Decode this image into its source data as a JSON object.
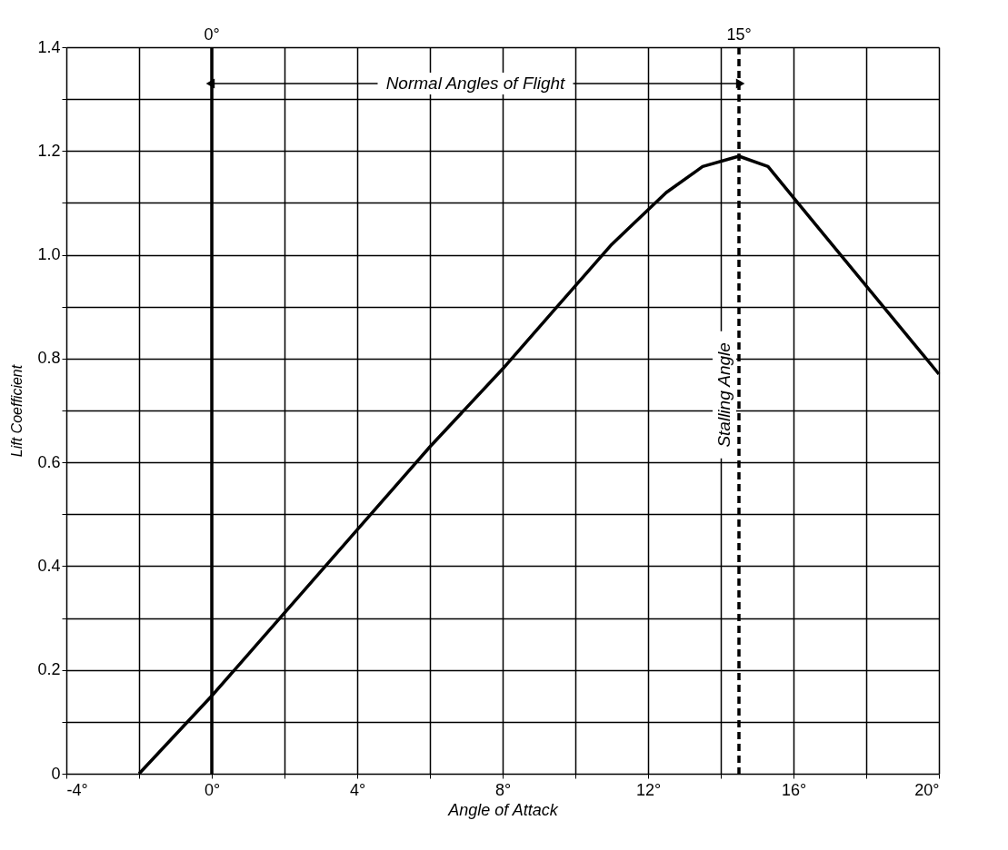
{
  "chart_data": {
    "type": "line",
    "xlabel": "Angle of Attack",
    "ylabel": "Lift Coefficient",
    "x": [
      -2,
      0,
      2,
      4,
      6,
      8,
      9.5,
      11,
      12.5,
      13.5,
      14.5,
      15.3,
      16,
      20
    ],
    "series": [
      {
        "color": "#000000",
        "values": [
          0,
          0.15,
          0.31,
          0.47,
          0.63,
          0.78,
          0.9,
          1.02,
          1.12,
          1.17,
          1.19,
          1.17,
          1.11,
          0.77
        ]
      }
    ],
    "xlim": [
      -4,
      20
    ],
    "xticks": [
      {
        "value": -4,
        "label": "-4°"
      },
      {
        "value": -2,
        "label": null
      },
      {
        "value": 0,
        "label": "0°"
      },
      {
        "value": 2,
        "label": null
      },
      {
        "value": 4,
        "label": "4°"
      },
      {
        "value": 6,
        "label": null
      },
      {
        "value": 8,
        "label": "8°"
      },
      {
        "value": 10,
        "label": null
      },
      {
        "value": 12,
        "label": "12°"
      },
      {
        "value": 14,
        "label": null
      },
      {
        "value": 16,
        "label": "16°"
      },
      {
        "value": 18,
        "label": null
      },
      {
        "value": 20,
        "label": "20°"
      }
    ],
    "ylim": [
      0,
      1.4
    ],
    "yticks": [
      0,
      {
        "value": 0.1,
        "label": null
      },
      0.2,
      {
        "value": 0.3,
        "label": null
      },
      0.4,
      {
        "value": 0.5,
        "label": null
      },
      0.6,
      {
        "value": 0.7,
        "label": null
      },
      0.8,
      {
        "value": 0.9,
        "label": null
      },
      {
        "value": 1,
        "label": "1.0"
      },
      {
        "value": 1.1,
        "label": null
      },
      1.2,
      {
        "value": 1.3,
        "label": null
      },
      1.4
    ],
    "grid": true,
    "marker": "none",
    "line_style": "solid",
    "ref_lines": [
      {
        "axis": "x",
        "value": 0,
        "label": "0°",
        "line_style": "solid",
        "color": "#000000"
      },
      {
        "axis": "x",
        "value": 14.5,
        "label": "15°",
        "line_style": "dashed",
        "color": "#000000"
      }
    ],
    "annotations": [
      "Normal Angles of Flight",
      {
        "text": "Stalling Angle",
        "x": 14.5,
        "y": 0.73
      }
    ]
  }
}
